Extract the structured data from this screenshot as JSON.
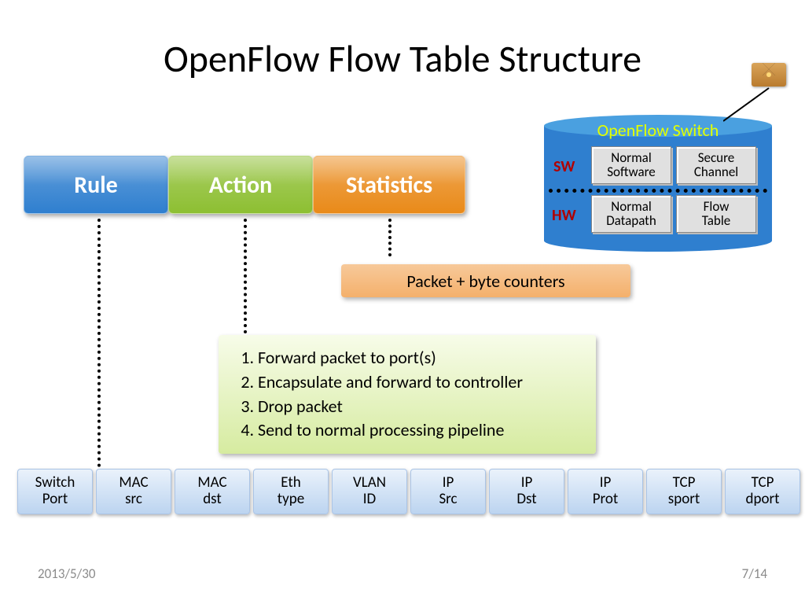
{
  "title": "OpenFlow Flow Table Structure",
  "tabs": {
    "rule": {
      "label": "Rule",
      "bg": "#2f7fcf"
    },
    "action": {
      "label": "Action",
      "bg": "#8dbf32"
    },
    "stats": {
      "label": "Statistics",
      "bg": "#e98a19"
    }
  },
  "stats_box": {
    "text": "Packet + byte counters",
    "bg_top": "#f7c99a",
    "bg_bottom": "#f4b06b"
  },
  "action_box": {
    "items": [
      "Forward packet to port(s)",
      "Encapsulate and forward to controller",
      "Drop packet",
      "Send to normal processing pipeline"
    ],
    "bg_top": "#f7fce9",
    "bg_bottom": "#d6eba0"
  },
  "rule_fields": {
    "bg_top": "#eaf2fb",
    "bg_bottom": "#bcd4f0",
    "items": [
      "Switch\nPort",
      "MAC\nsrc",
      "MAC\ndst",
      "Eth\ntype",
      "VLAN\nID",
      "IP\nSrc",
      "IP\nDst",
      "IP\nProt",
      "TCP\nsport",
      "TCP\ndport"
    ]
  },
  "switch": {
    "title": "OpenFlow Switch",
    "title_color": "#e2ff00",
    "body_color": "#2f7fcf",
    "top_color": "#4aa0e0",
    "label_sw": "SW",
    "label_hw": "HW",
    "label_color": "#b00000",
    "cells_row1": [
      "Normal\nSoftware",
      "Secure\nChannel"
    ],
    "cells_row2": [
      "Normal\nDatapath",
      "Flow\nTable"
    ]
  },
  "envelope": {
    "bg_top": "#d9a45a",
    "bg_bottom": "#b97b2e",
    "dot_color": "#ffd977"
  },
  "footer": {
    "date": "2013/5/30",
    "page": "7/14"
  }
}
